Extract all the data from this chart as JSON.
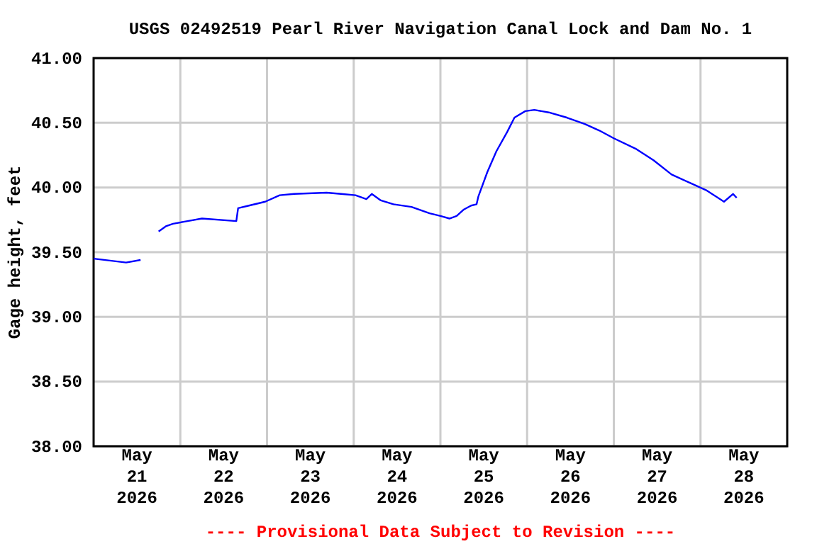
{
  "chart_data": {
    "type": "line",
    "title": "USGS 02492519 Pearl River Navigation Canal Lock and Dam No. 1",
    "ylabel": "Gage height, feet",
    "annotations": [
      "---- Provisional Data Subject to Revision ----"
    ],
    "series": [
      {
        "color": "#0000ff",
        "x": [
          "2026-05-21T00:00",
          "2026-05-21T09:00",
          "2026-05-21T13:00"
        ],
        "values": [
          39.45,
          39.42,
          39.44
        ]
      },
      {
        "color": "#0000ff",
        "x": [
          "2026-05-21T18:00",
          "2026-05-21T20:00",
          "2026-05-21T22:00",
          "2026-05-22T02:00",
          "2026-05-22T06:00",
          "2026-05-22T15:30",
          "2026-05-22T16:00",
          "2026-05-22T19:00",
          "2026-05-22T23:30",
          "2026-05-23T03:30",
          "2026-05-23T07:30",
          "2026-05-23T16:30",
          "2026-05-23T20:30",
          "2026-05-24T00:30",
          "2026-05-24T03:30",
          "2026-05-24T05:00",
          "2026-05-24T07:30",
          "2026-05-24T11:00",
          "2026-05-24T16:00",
          "2026-05-24T21:00",
          "2026-05-25T00:00",
          "2026-05-25T02:30",
          "2026-05-25T04:30",
          "2026-05-25T06:30",
          "2026-05-25T08:30",
          "2026-05-25T10:00",
          "2026-05-25T10:30",
          "2026-05-25T13:00",
          "2026-05-25T15:30",
          "2026-05-25T18:30",
          "2026-05-25T20:30",
          "2026-05-25T23:30",
          "2026-05-26T02:00",
          "2026-05-26T06:00",
          "2026-05-26T11:00",
          "2026-05-26T16:00",
          "2026-05-26T20:00",
          "2026-05-27T00:00",
          "2026-05-27T06:00",
          "2026-05-27T11:00",
          "2026-05-27T16:00",
          "2026-05-27T21:30",
          "2026-05-28T01:30",
          "2026-05-28T06:30",
          "2026-05-28T09:00",
          "2026-05-28T10:00"
        ],
        "values": [
          39.66,
          39.7,
          39.72,
          39.74,
          39.76,
          39.74,
          39.84,
          39.86,
          39.89,
          39.94,
          39.95,
          39.96,
          39.95,
          39.94,
          39.91,
          39.95,
          39.9,
          39.87,
          39.85,
          39.8,
          39.78,
          39.76,
          39.78,
          39.83,
          39.86,
          39.87,
          39.93,
          40.12,
          40.28,
          40.43,
          40.54,
          40.59,
          40.6,
          40.58,
          40.54,
          40.49,
          40.44,
          40.38,
          40.3,
          40.21,
          40.1,
          40.03,
          39.98,
          39.89,
          39.95,
          39.92
        ]
      }
    ],
    "xlim": [
      "2026-05-21",
      "2026-05-29"
    ],
    "xticks": [
      {
        "value": "2026-05-21T12:00",
        "label": "May 21 2026"
      },
      {
        "value": "2026-05-22",
        "label": null
      },
      {
        "value": "2026-05-22T12:00",
        "label": "May 22 2026"
      },
      {
        "value": "2026-05-23",
        "label": null
      },
      {
        "value": "2026-05-23T12:00",
        "label": "May 23 2026"
      },
      {
        "value": "2026-05-24",
        "label": null
      },
      {
        "value": "2026-05-24T12:00",
        "label": "May 24 2026"
      },
      {
        "value": "2026-05-25",
        "label": null
      },
      {
        "value": "2026-05-25T12:00",
        "label": "May 25 2026"
      },
      {
        "value": "2026-05-26",
        "label": null
      },
      {
        "value": "2026-05-26T12:00",
        "label": "May 26 2026"
      },
      {
        "value": "2026-05-27",
        "label": null
      },
      {
        "value": "2026-05-27T12:00",
        "label": "May 27 2026"
      },
      {
        "value": "2026-05-28",
        "label": null
      },
      {
        "value": "2026-05-28T12:00",
        "label": "May 28 2026"
      }
    ],
    "ylim": [
      38,
      41
    ],
    "yticks": [
      {
        "value": 38,
        "label": "38.00"
      },
      {
        "value": 38.5,
        "label": "38.50"
      },
      {
        "value": 39,
        "label": "39.00"
      },
      {
        "value": 39.5,
        "label": "39.50"
      },
      {
        "value": 40,
        "label": "40.00"
      },
      {
        "value": 40.5,
        "label": "40.50"
      },
      {
        "value": 41,
        "label": "41.00"
      }
    ],
    "grid": true,
    "marker": "none",
    "line_style": "solid"
  }
}
